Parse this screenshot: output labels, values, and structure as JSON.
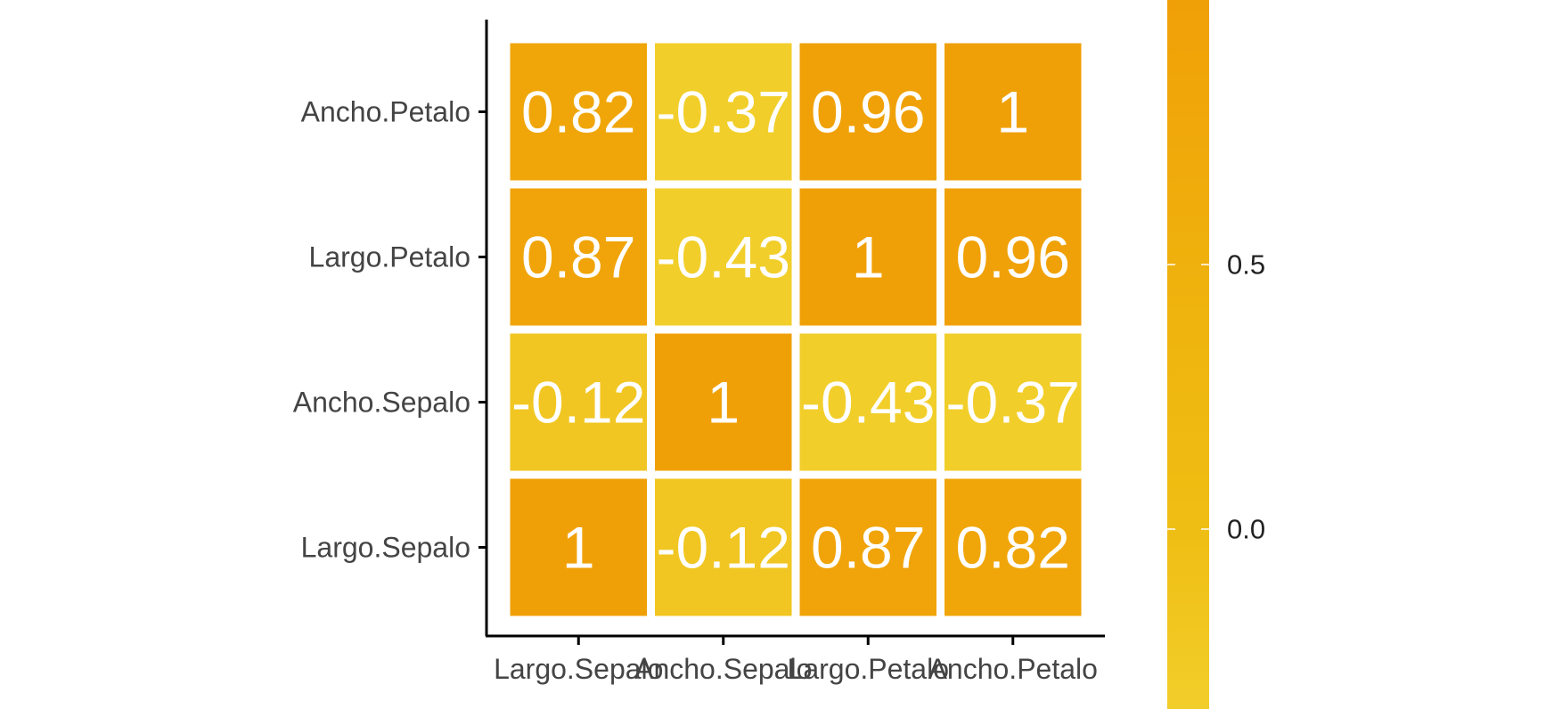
{
  "chart_data": {
    "type": "heatmap",
    "title": "",
    "xlabel": "",
    "ylabel": "",
    "x_categories": [
      "Largo.Sepalo",
      "Ancho.Sepalo",
      "Largo.Petalo",
      "Ancho.Petalo"
    ],
    "y_categories": [
      "Largo.Sepalo",
      "Ancho.Sepalo",
      "Largo.Petalo",
      "Ancho.Petalo"
    ],
    "values": [
      [
        1,
        -0.12,
        0.87,
        0.82
      ],
      [
        -0.12,
        1,
        -0.43,
        -0.37
      ],
      [
        0.87,
        -0.43,
        1,
        0.96
      ],
      [
        0.82,
        -0.37,
        0.96,
        1
      ]
    ],
    "value_labels": [
      [
        "1",
        "-0.12",
        "0.87",
        "0.82"
      ],
      [
        "-0.12",
        "1",
        "-0.43",
        "-0.37"
      ],
      [
        "0.87",
        "-0.43",
        "1",
        "0.96"
      ],
      [
        "0.82",
        "-0.37",
        "0.96",
        "1"
      ]
    ],
    "colorbar": {
      "ticks": [
        0.0,
        0.5
      ],
      "tick_labels": [
        "0.0",
        "0.5"
      ],
      "range": [
        -0.34,
        1.0
      ],
      "low_color": "#F2CE2A",
      "mid_color": "#EFB40E",
      "high_color": "#F0A007",
      "placement": "right"
    },
    "grid": false,
    "legend": "right"
  }
}
